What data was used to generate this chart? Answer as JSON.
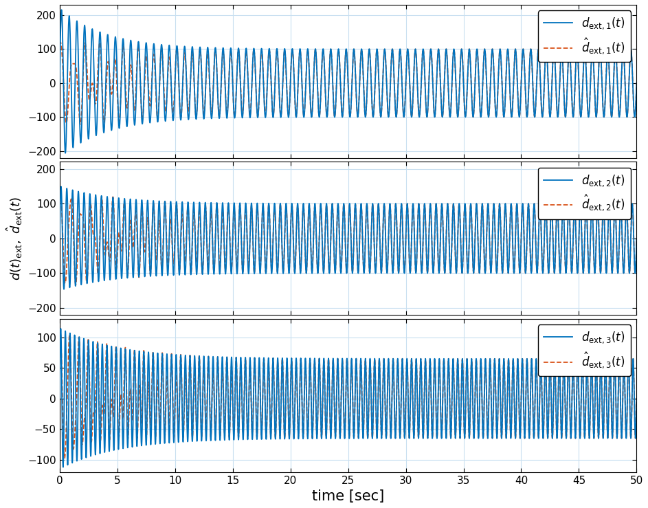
{
  "t_start": 0,
  "t_end": 50,
  "n_points": 10001,
  "subplots": [
    {
      "amp_init": 220,
      "amp_steady": 100,
      "env_decay": 0.25,
      "freq_hz": 1.5,
      "est_gain_init": 0.0,
      "est_gain_steady": 1.0,
      "est_conv_rate": 0.18,
      "est_extra_amp": 120,
      "est_extra_decay": 0.22,
      "est_extra_freq_mult": 0.6,
      "ylim": [
        -220,
        230
      ],
      "yticks": [
        -200,
        -100,
        0,
        100,
        200
      ],
      "legend_true": "$d_{\\mathrm{ext},1}(t)$",
      "legend_est": "$\\hat{d}_{\\mathrm{ext},1}(t)$"
    },
    {
      "amp_init": 150,
      "amp_steady": 100,
      "env_decay": 0.22,
      "freq_hz": 2.0,
      "est_gain_init": 0.0,
      "est_gain_steady": 1.0,
      "est_conv_rate": 0.15,
      "est_extra_amp": 140,
      "est_extra_decay": 0.18,
      "est_extra_freq_mult": 0.55,
      "ylim": [
        -220,
        220
      ],
      "yticks": [
        -200,
        -100,
        0,
        100,
        200
      ],
      "legend_true": "$d_{\\mathrm{ext},2}(t)$",
      "legend_est": "$\\hat{d}_{\\mathrm{ext},2}(t)$"
    },
    {
      "amp_init": 115,
      "amp_steady": 65,
      "env_decay": 0.2,
      "freq_hz": 2.5,
      "est_gain_init": 0.0,
      "est_gain_steady": 1.0,
      "est_conv_rate": 0.15,
      "est_extra_amp": 110,
      "est_extra_decay": 0.18,
      "est_extra_freq_mult": 0.5,
      "ylim": [
        -120,
        130
      ],
      "yticks": [
        -100,
        -50,
        0,
        50,
        100
      ],
      "legend_true": "$d_{\\mathrm{ext},3}(t)$",
      "legend_est": "$\\hat{d}_{\\mathrm{ext},3}(t)$"
    }
  ],
  "color_true": "#0072BD",
  "color_est": "#D95319",
  "lw_true": 1.3,
  "lw_est": 1.3,
  "xlabel": "time [sec]",
  "ylabel": "$d(t)_{\\mathrm{ext}},\\ \\hat{d}_{\\mathrm{ext}}(t)$",
  "xticks": [
    0,
    5,
    10,
    15,
    20,
    25,
    30,
    35,
    40,
    45,
    50
  ],
  "bg_color": "#FFFFFF",
  "grid_color": "#C8DFF0",
  "tick_fontsize": 11,
  "label_fontsize": 13,
  "legend_fontsize": 12
}
